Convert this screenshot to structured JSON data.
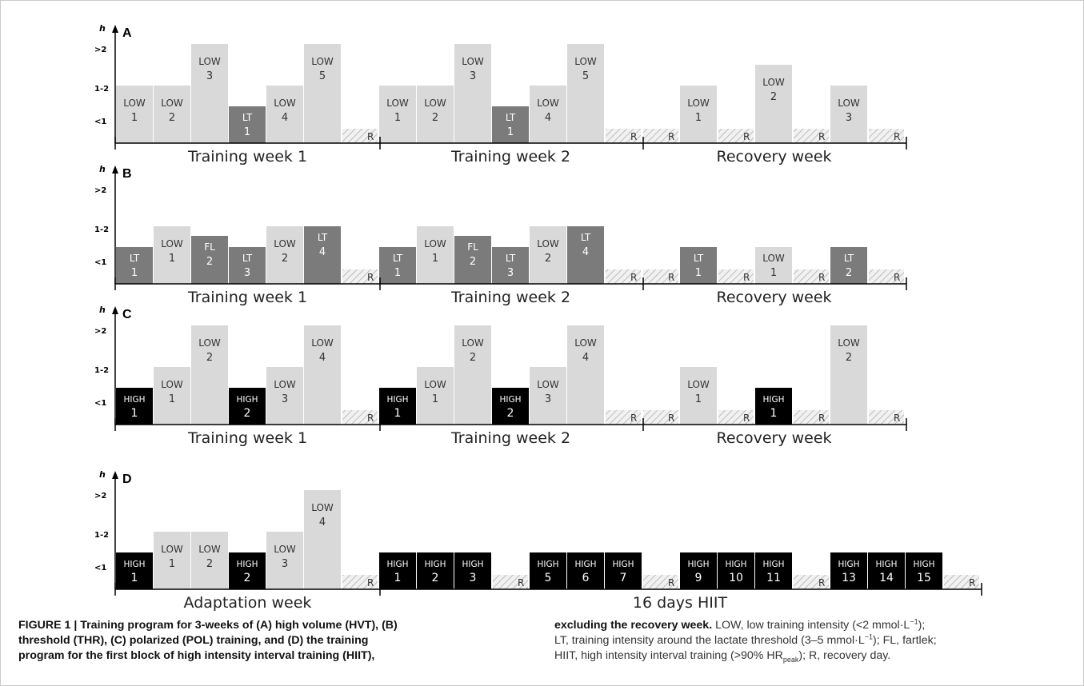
{
  "figure": {
    "axis_unit": "h",
    "y_levels": [
      ">2",
      "1-2",
      "<1"
    ],
    "bar_colors": {
      "LOW": "#d9d9d9",
      "LT": "#7b7b7b",
      "FL": "#7b7b7b",
      "HIGH": "#000000",
      "R": "#ececec"
    },
    "panels": [
      {
        "letter": "A",
        "segments": [
          {
            "label": "Training week 1",
            "start": 0,
            "end": 7
          },
          {
            "label": "Training week 2",
            "start": 7,
            "end": 14
          },
          {
            "label": "Recovery week",
            "start": 14,
            "end": 21
          }
        ],
        "days": [
          {
            "t": "LOW",
            "n": "1",
            "h": "1-2"
          },
          {
            "t": "LOW",
            "n": "2",
            "h": "1-2"
          },
          {
            "t": "LOW",
            "n": "3",
            "h": ">2"
          },
          {
            "t": "LT",
            "n": "1",
            "h": "<1"
          },
          {
            "t": "LOW",
            "n": "4",
            "h": "1-2"
          },
          {
            "t": "LOW",
            "n": "5",
            "h": ">2"
          },
          {
            "t": "R"
          },
          {
            "t": "LOW",
            "n": "1",
            "h": "1-2"
          },
          {
            "t": "LOW",
            "n": "2",
            "h": "1-2"
          },
          {
            "t": "LOW",
            "n": "3",
            "h": ">2"
          },
          {
            "t": "LT",
            "n": "1",
            "h": "<1"
          },
          {
            "t": "LOW",
            "n": "4",
            "h": "1-2"
          },
          {
            "t": "LOW",
            "n": "5",
            "h": ">2"
          },
          {
            "t": "R"
          },
          {
            "t": "R"
          },
          {
            "t": "LOW",
            "n": "1",
            "h": "1-2"
          },
          {
            "t": "R"
          },
          {
            "t": "LOW",
            "n": "2",
            "h": "1-2/>2"
          },
          {
            "t": "R"
          },
          {
            "t": "LOW",
            "n": "3",
            "h": "1-2"
          },
          {
            "t": "R"
          }
        ]
      },
      {
        "letter": "B",
        "segments": [
          {
            "label": "Training week 1",
            "start": 0,
            "end": 7
          },
          {
            "label": "Training week 2",
            "start": 7,
            "end": 14
          },
          {
            "label": "Recovery week",
            "start": 14,
            "end": 21
          }
        ],
        "days": [
          {
            "t": "LT",
            "n": "1",
            "h": "<1"
          },
          {
            "t": "LOW",
            "n": "1",
            "h": "1-2"
          },
          {
            "t": "FL",
            "n": "2",
            "h": "<1/1-2"
          },
          {
            "t": "LT",
            "n": "3",
            "h": "<1"
          },
          {
            "t": "LOW",
            "n": "2",
            "h": "1-2"
          },
          {
            "t": "LT",
            "n": "4",
            "h": "1-2"
          },
          {
            "t": "R"
          },
          {
            "t": "LT",
            "n": "1",
            "h": "<1"
          },
          {
            "t": "LOW",
            "n": "1",
            "h": "1-2"
          },
          {
            "t": "FL",
            "n": "2",
            "h": "<1/1-2"
          },
          {
            "t": "LT",
            "n": "3",
            "h": "<1"
          },
          {
            "t": "LOW",
            "n": "2",
            "h": "1-2"
          },
          {
            "t": "LT",
            "n": "4",
            "h": "1-2"
          },
          {
            "t": "R"
          },
          {
            "t": "R"
          },
          {
            "t": "LT",
            "n": "1",
            "h": "<1"
          },
          {
            "t": "R"
          },
          {
            "t": "LOW",
            "n": "1",
            "h": "<1"
          },
          {
            "t": "R"
          },
          {
            "t": "LT",
            "n": "2",
            "h": "<1"
          },
          {
            "t": "R"
          }
        ]
      },
      {
        "letter": "C",
        "segments": [
          {
            "label": "Training week 1",
            "start": 0,
            "end": 7
          },
          {
            "label": "Training week 2",
            "start": 7,
            "end": 14
          },
          {
            "label": "Recovery week",
            "start": 14,
            "end": 21
          }
        ],
        "days": [
          {
            "t": "HIGH",
            "n": "1",
            "h": "<1"
          },
          {
            "t": "LOW",
            "n": "1",
            "h": "1-2"
          },
          {
            "t": "LOW",
            "n": "2",
            "h": ">2"
          },
          {
            "t": "HIGH",
            "n": "2",
            "h": "<1"
          },
          {
            "t": "LOW",
            "n": "3",
            "h": "1-2"
          },
          {
            "t": "LOW",
            "n": "4",
            "h": ">2"
          },
          {
            "t": "R"
          },
          {
            "t": "HIGH",
            "n": "1",
            "h": "<1"
          },
          {
            "t": "LOW",
            "n": "1",
            "h": "1-2"
          },
          {
            "t": "LOW",
            "n": "2",
            "h": ">2"
          },
          {
            "t": "HIGH",
            "n": "2",
            "h": "<1"
          },
          {
            "t": "LOW",
            "n": "3",
            "h": "1-2"
          },
          {
            "t": "LOW",
            "n": "4",
            "h": ">2"
          },
          {
            "t": "R"
          },
          {
            "t": "R"
          },
          {
            "t": "LOW",
            "n": "1",
            "h": "1-2"
          },
          {
            "t": "R"
          },
          {
            "t": "HIGH",
            "n": "1",
            "h": "<1"
          },
          {
            "t": "R"
          },
          {
            "t": "LOW",
            "n": "2",
            "h": ">2"
          },
          {
            "t": "R"
          }
        ]
      },
      {
        "letter": "D",
        "segments": [
          {
            "label": "Adaptation week",
            "start": 0,
            "end": 7
          },
          {
            "label": "16 days HIIT",
            "start": 7,
            "end": 23
          }
        ],
        "days": [
          {
            "t": "HIGH",
            "n": "1",
            "h": "<1"
          },
          {
            "t": "LOW",
            "n": "1",
            "h": "1-2"
          },
          {
            "t": "LOW",
            "n": "2",
            "h": "1-2"
          },
          {
            "t": "HIGH",
            "n": "2",
            "h": "<1"
          },
          {
            "t": "LOW",
            "n": "3",
            "h": "1-2"
          },
          {
            "t": "LOW",
            "n": "4",
            "h": ">2"
          },
          {
            "t": "R"
          },
          {
            "t": "HIGH",
            "n": "1",
            "h": "<1"
          },
          {
            "t": "HIGH",
            "n": "2",
            "h": "<1"
          },
          {
            "t": "HIGH",
            "n": "3",
            "h": "<1"
          },
          {
            "t": "R"
          },
          {
            "t": "HIGH",
            "n": "5",
            "h": "<1"
          },
          {
            "t": "HIGH",
            "n": "6",
            "h": "<1"
          },
          {
            "t": "HIGH",
            "n": "7",
            "h": "<1"
          },
          {
            "t": "R"
          },
          {
            "t": "HIGH",
            "n": "9",
            "h": "<1"
          },
          {
            "t": "HIGH",
            "n": "10",
            "h": "<1"
          },
          {
            "t": "HIGH",
            "n": "11",
            "h": "<1"
          },
          {
            "t": "R"
          },
          {
            "t": "HIGH",
            "n": "13",
            "h": "<1"
          },
          {
            "t": "HIGH",
            "n": "14",
            "h": "<1"
          },
          {
            "t": "HIGH",
            "n": "15",
            "h": "<1"
          },
          {
            "t": "R"
          }
        ]
      }
    ]
  },
  "caption": {
    "bold_text": "FIGURE 1 | Training program for 3-weeks of (A) high volume (HVT), (B) threshold (THR), (C) polarized (POL) training, and (D) the training program for the first block of high intensity interval training (HIIT), excluding the recovery week.",
    "left_lines": [
      "FIGURE 1 | Training program for 3-weeks of (A) high volume (HVT), (B)",
      "threshold (THR), (C) polarized (POL) training, and (D) the training",
      "program for the first block of high intensity interval training (HIIT),"
    ],
    "right_bold": "excluding the recovery week.",
    "right_line1": " LOW, low training intensity (<2 mmol·L",
    "right_line2": "LT, training intensity around the lactate threshold (3–5 mmol·L",
    "right_line2_end": "); FL, fartlek;",
    "right_line3": "HIIT, high intensity interval training (>90% HR",
    "right_line3_sub": "peak",
    "right_line3_end": "); R, recovery day.",
    "right_line1_end": ");",
    "superscript": "−1"
  }
}
